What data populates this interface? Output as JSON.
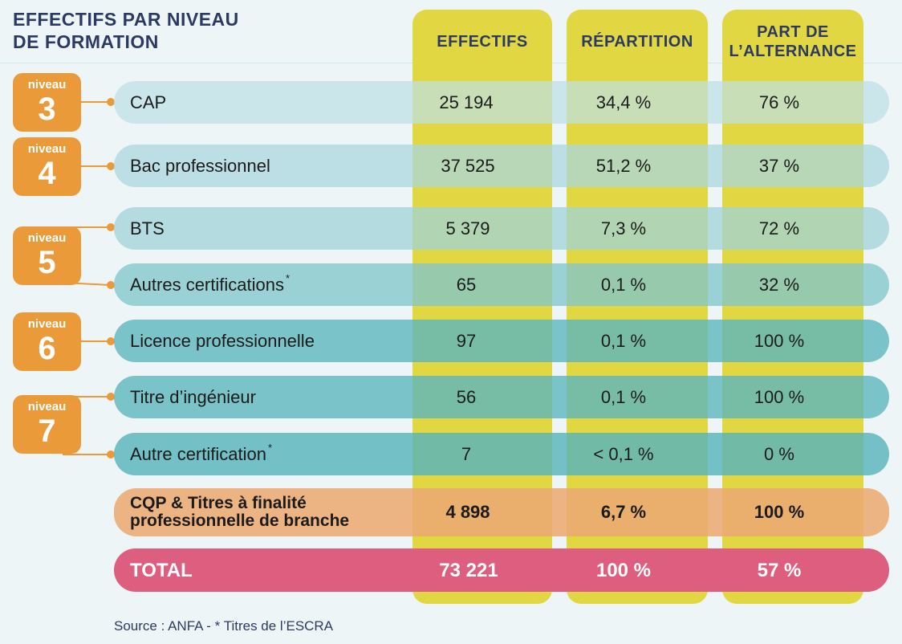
{
  "title": {
    "line1": "EFFECTIFS PAR NIVEAU",
    "line2": "DE FORMATION"
  },
  "columns": [
    {
      "key": "effectifs",
      "line1": "EFFECTIFS",
      "line2": ""
    },
    {
      "key": "repartition",
      "line1": "RÉPARTITION",
      "line2": ""
    },
    {
      "key": "alternance",
      "line1": "PART DE",
      "line2": "L’ALTERNANCE"
    }
  ],
  "levels": [
    {
      "label": "niveau",
      "number": "3"
    },
    {
      "label": "niveau",
      "number": "4"
    },
    {
      "label": "niveau",
      "number": "5"
    },
    {
      "label": "niveau",
      "number": "6"
    },
    {
      "label": "niveau",
      "number": "7"
    }
  ],
  "rows": [
    {
      "label": "CAP",
      "star": "",
      "effectifs": "25 194",
      "repartition": "34,4 %",
      "alternance": "76 %"
    },
    {
      "label": "Bac professionnel",
      "star": "",
      "effectifs": "37 525",
      "repartition": "51,2 %",
      "alternance": "37 %"
    },
    {
      "label": "BTS",
      "star": "",
      "effectifs": "5 379",
      "repartition": "7,3 %",
      "alternance": "72 %"
    },
    {
      "label": "Autres certifications",
      "star": "*",
      "effectifs": "65",
      "repartition": "0,1 %",
      "alternance": "32 %"
    },
    {
      "label": "Licence professionnelle",
      "star": "",
      "effectifs": "97",
      "repartition": "0,1 %",
      "alternance": "100 %"
    },
    {
      "label": "Titre d’ingénieur",
      "star": "",
      "effectifs": "56",
      "repartition": "0,1 %",
      "alternance": "100 %"
    },
    {
      "label": "Autre certification",
      "star": "*",
      "effectifs": "7",
      "repartition": "< 0,1 %",
      "alternance": "0 %"
    }
  ],
  "cqp": {
    "label_line1": "CQP & Titres à finalité",
    "label_line2": "professionnelle de branche",
    "effectifs": "4 898",
    "repartition": "6,7 %",
    "alternance": "100 %"
  },
  "total": {
    "label": "TOTAL",
    "effectifs": "73 221",
    "repartition": "100 %",
    "alternance": "57 %"
  },
  "source": "Source : ANFA - * Titres de l’ESCRA",
  "colors": {
    "column_yellow": "#e1d743",
    "badge_orange": "#eb9a3a",
    "title_navy": "#2c3a63",
    "row_shades": [
      "#cde6ea",
      "#bde1e5",
      "#b0dde1",
      "#9ed5d9",
      "#7fc8cd",
      "#79c6cb",
      "#74c4c9"
    ],
    "cqp_orange": "#eeb080",
    "total_pink": "#dd5e7e"
  }
}
